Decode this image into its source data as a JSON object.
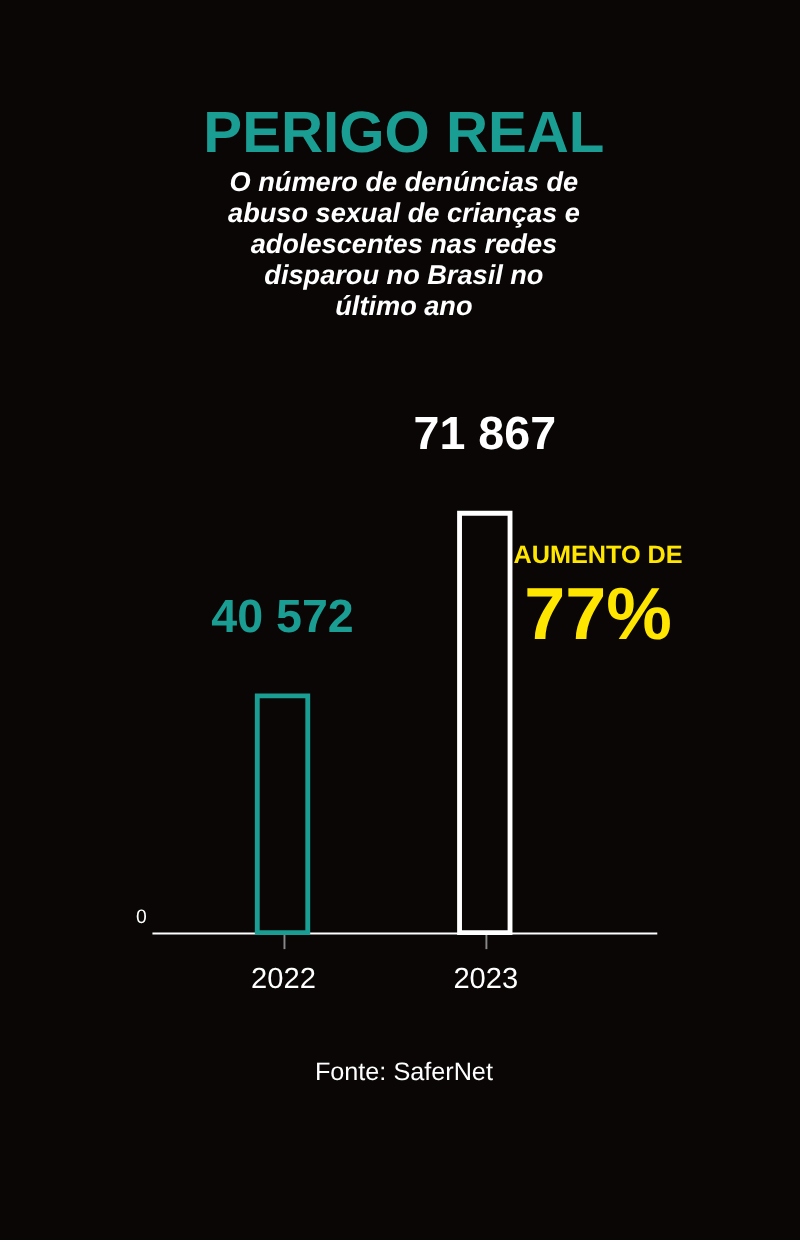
{
  "chart_data": {
    "type": "bar",
    "title": "PERIGO REAL",
    "subtitle": "O número de denúncias de abuso sexual de crianças e adolescentes nas redes disparou no Brasil no último ano",
    "categories": [
      "2022",
      "2023"
    ],
    "values": [
      40572,
      71867
    ],
    "colors": [
      "#1a9e93",
      "#ffffff"
    ],
    "data_labels": true,
    "annotations": [
      "0",
      "AUMENTO DE",
      "77%",
      "Fonte: SaferNet"
    ]
  }
}
